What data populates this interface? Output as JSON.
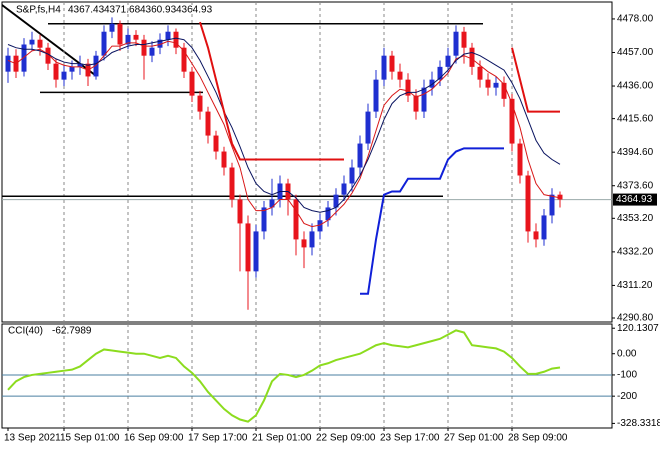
{
  "chart_data": {
    "type": "candlestick",
    "symbol": "S&P,fs,H4",
    "header_ohlc": [
      4367.43,
      4371.68,
      4360.93,
      4364.93
    ],
    "last_price": {
      "value": 4364.93,
      "label": "4364.93"
    },
    "categories": [
      "13 Sep 2021",
      null,
      null,
      null,
      null,
      null,
      null,
      "15 Sep 01:00",
      null,
      null,
      null,
      null,
      null,
      null,
      null,
      "16 Sep 09:00",
      null,
      null,
      null,
      null,
      null,
      null,
      null,
      "17 Sep 17:00",
      null,
      null,
      null,
      null,
      null,
      null,
      null,
      "21 Sep 01:00",
      null,
      null,
      null,
      null,
      null,
      null,
      null,
      "22 Sep 09:00",
      null,
      null,
      null,
      null,
      null,
      null,
      null,
      "23 Sep 17:00",
      null,
      null,
      null,
      null,
      null,
      null,
      null,
      "27 Sep 01:00",
      null,
      null,
      null,
      null,
      null,
      null,
      null,
      "28 Sep 09:00",
      null,
      null,
      null,
      null,
      null,
      null
    ],
    "open": [
      4445,
      4455,
      4445,
      4462,
      4465,
      4460,
      4450,
      4440,
      4445,
      4448,
      4450,
      4442,
      4455,
      4470,
      4475,
      4462,
      4468,
      4465,
      4455,
      4460,
      4465,
      4470,
      4460,
      4445,
      4430,
      4420,
      4405,
      4395,
      4385,
      4365,
      4350,
      4320,
      4345,
      4360,
      4365,
      4375,
      4365,
      4340,
      4335,
      4345,
      4352,
      4360,
      4368,
      4375,
      4385,
      4400,
      4420,
      4440,
      4455,
      4445,
      4440,
      4430,
      4420,
      4435,
      4440,
      4448,
      4455,
      4470,
      4460,
      4448,
      4440,
      4435,
      4438,
      4428,
      4400,
      4380,
      4345,
      4340,
      4355,
      4368
    ],
    "high": [
      4460,
      4459,
      4466,
      4470,
      4468,
      4463,
      4453,
      4449,
      4452,
      4455,
      4453,
      4458,
      4474,
      4479,
      4477,
      4472,
      4471,
      4468,
      4464,
      4469,
      4474,
      4472,
      4463,
      4448,
      4433,
      4423,
      4408,
      4398,
      4388,
      4368,
      4355,
      4349,
      4364,
      4378,
      4380,
      4378,
      4368,
      4345,
      4350,
      4356,
      4364,
      4372,
      4380,
      4390,
      4405,
      4425,
      4446,
      4460,
      4458,
      4450,
      4444,
      4434,
      4440,
      4445,
      4452,
      4460,
      4474,
      4473,
      4463,
      4452,
      4444,
      4442,
      4442,
      4431,
      4403,
      4383,
      4350,
      4359,
      4372,
      4370
    ],
    "low": [
      4438,
      4441,
      4442,
      4458,
      4455,
      4446,
      4435,
      4436,
      4440,
      4443,
      4436,
      4440,
      4452,
      4466,
      4458,
      4459,
      4461,
      4440,
      4451,
      4456,
      4461,
      4456,
      4441,
      4426,
      4415,
      4400,
      4390,
      4380,
      4360,
      4320,
      4296,
      4316,
      4340,
      4355,
      4360,
      4355,
      4330,
      4322,
      4330,
      4340,
      4348,
      4355,
      4364,
      4370,
      4380,
      4396,
      4416,
      4436,
      4440,
      4435,
      4426,
      4415,
      4416,
      4430,
      4436,
      4444,
      4450,
      4450,
      4443,
      4435,
      4430,
      4430,
      4423,
      4395,
      4375,
      4338,
      4335,
      4336,
      4350,
      4360
    ],
    "close": [
      4455,
      4445,
      4462,
      4465,
      4460,
      4450,
      4440,
      4445,
      4448,
      4450,
      4442,
      4455,
      4470,
      4475,
      4462,
      4468,
      4465,
      4455,
      4460,
      4465,
      4470,
      4460,
      4445,
      4430,
      4420,
      4405,
      4395,
      4385,
      4365,
      4350,
      4320,
      4345,
      4360,
      4365,
      4375,
      4365,
      4340,
      4335,
      4345,
      4352,
      4360,
      4368,
      4375,
      4385,
      4400,
      4420,
      4440,
      4455,
      4445,
      4440,
      4430,
      4420,
      4435,
      4440,
      4448,
      4455,
      4470,
      4460,
      4448,
      4440,
      4435,
      4438,
      4428,
      4400,
      4380,
      4345,
      4340,
      4355,
      4368,
      4365
    ],
    "up_color": "#1f2fd0",
    "down_color": "#e8141c",
    "lines": [
      {
        "color": "#d81818",
        "width": 1,
        "values": [
          4452,
          4450,
          4454,
          4458,
          4459,
          4456,
          4451,
          4449,
          4448,
          4448,
          4446,
          4449,
          4455,
          4461,
          4461,
          4463,
          4463,
          4461,
          4461,
          4462,
          4464,
          4463,
          4458,
          4450,
          4442,
          4432,
          4422,
          4412,
          4398,
          4385,
          4365,
          4358,
          4358,
          4360,
          4365,
          4365,
          4358,
          4350,
          4348,
          4349,
          4352,
          4357,
          4362,
          4369,
          4378,
          4392,
          4408,
          4424,
          4430,
          4434,
          4433,
          4429,
          4431,
          4434,
          4439,
          4444,
          4453,
          4455,
          4453,
          4449,
          4445,
          4442,
          4437,
          4425,
          4410,
          4390,
          4375,
          4368,
          4367,
          4366
        ]
      },
      {
        "color": "#0a1460",
        "width": 1,
        "values": [
          4462,
          4460,
          4459,
          4459,
          4458,
          4456,
          4453,
          4451,
          4450,
          4450,
          4449,
          4450,
          4453,
          4457,
          4459,
          4461,
          4462,
          4462,
          4463,
          4464,
          4465,
          4466,
          4465,
          4460,
          4452,
          4442,
          4432,
          4420,
          4410,
          4398,
          4385,
          4375,
          4370,
          4368,
          4370,
          4370,
          4366,
          4360,
          4358,
          4357,
          4358,
          4360,
          4365,
          4372,
          4380,
          4390,
          4402,
          4415,
          4425,
          4430,
          4432,
          4432,
          4434,
          4437,
          4441,
          4446,
          4452,
          4456,
          4457,
          4455,
          4452,
          4449,
          4446,
          4438,
          4428,
          4415,
          4402,
          4394,
          4390,
          4387
        ]
      },
      {
        "color": "#e01010",
        "width": 2,
        "values": [
          null,
          null,
          null,
          null,
          null,
          null,
          null,
          null,
          null,
          null,
          null,
          null,
          null,
          null,
          null,
          null,
          null,
          null,
          null,
          null,
          null,
          null,
          null,
          null,
          4476,
          4460,
          4440,
          4420,
          4400,
          4390,
          4390,
          4390,
          4390,
          4390,
          4390,
          4390,
          4390,
          4390,
          4390,
          4390,
          4390,
          4390,
          4390,
          null,
          null,
          null,
          null,
          null,
          null,
          null,
          null,
          null,
          null,
          null,
          null,
          null,
          null,
          null,
          null,
          null,
          null,
          null,
          null,
          4460,
          4440,
          4420,
          4420,
          4420,
          4420,
          4420
        ]
      },
      {
        "color": "#1020d8",
        "width": 2,
        "values": [
          null,
          null,
          null,
          null,
          null,
          null,
          null,
          null,
          null,
          null,
          null,
          null,
          null,
          null,
          null,
          null,
          null,
          null,
          null,
          null,
          null,
          null,
          null,
          null,
          null,
          null,
          null,
          null,
          null,
          null,
          null,
          null,
          null,
          null,
          null,
          null,
          null,
          null,
          null,
          null,
          null,
          null,
          null,
          null,
          4306,
          4306,
          4340,
          4368,
          4370,
          4370,
          4378,
          4378,
          4378,
          4378,
          4378,
          4390,
          4395,
          4397,
          4397,
          4397,
          4397,
          4397,
          4397,
          null,
          null,
          null,
          null,
          null,
          null,
          null
        ]
      }
    ],
    "levels": [
      4475,
      4432,
      4367
    ],
    "ylim": [
      4288.3,
      4488.6
    ],
    "yticks": [
      {
        "value": 4478,
        "label": "4478.00"
      },
      {
        "value": 4457,
        "label": "4457.00"
      },
      {
        "value": 4436,
        "label": "4436.00"
      },
      {
        "value": 4415.6,
        "label": "4415.60"
      },
      {
        "value": 4394.6,
        "label": "4394.60"
      },
      {
        "value": 4373.6,
        "label": "4373.60"
      },
      {
        "value": 4353.2,
        "label": "4353.20"
      },
      {
        "value": 4332.2,
        "label": "4332.20"
      },
      {
        "value": 4311.2,
        "label": "4311.20"
      },
      {
        "value": 4290.8,
        "label": "4290.80"
      }
    ],
    "cci": {
      "title": "CCI(40)",
      "last": -62.7989,
      "color": "#8cdc1e",
      "values": [
        -170,
        -130,
        -110,
        -100,
        -95,
        -90,
        -85,
        -80,
        -75,
        -60,
        -30,
        0,
        20,
        15,
        10,
        5,
        0,
        0,
        -10,
        -20,
        -10,
        -20,
        -60,
        -90,
        -130,
        -180,
        -220,
        -260,
        -290,
        -310,
        -320,
        -290,
        -220,
        -130,
        -95,
        -100,
        -110,
        -100,
        -80,
        -55,
        -45,
        -30,
        -20,
        -10,
        0,
        20,
        40,
        50,
        40,
        35,
        30,
        40,
        50,
        60,
        70,
        90,
        110,
        100,
        40,
        35,
        30,
        25,
        10,
        -20,
        -60,
        -95,
        -95,
        -85,
        -70,
        -65
      ],
      "ylim": [
        -350,
        140
      ],
      "yticks": [
        120.1307,
        {
          "value": 0,
          "label": "0.00"
        },
        -100,
        -200,
        -328.3318
      ],
      "levels": [
        -100,
        -200
      ]
    }
  }
}
